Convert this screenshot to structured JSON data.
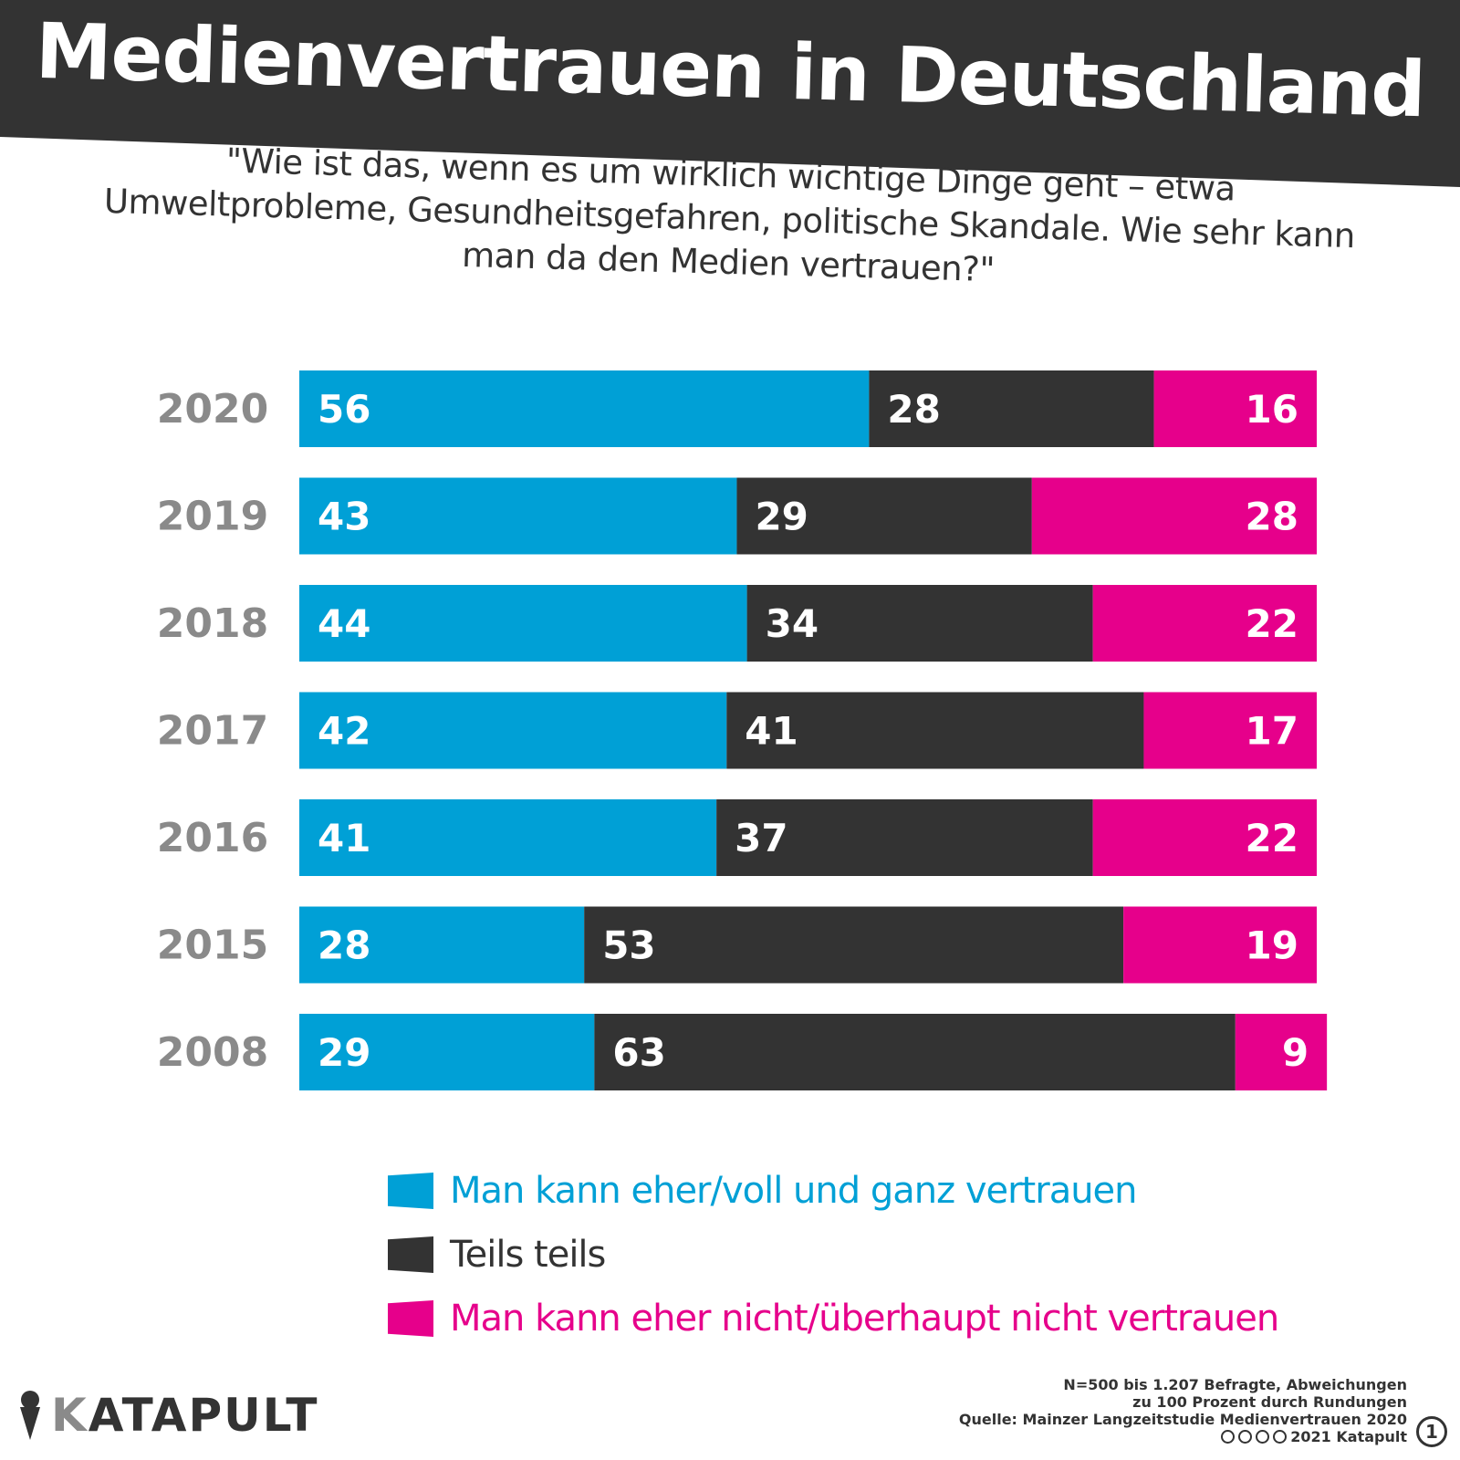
{
  "header": {
    "title": "Medienvertrauen in Deutschland",
    "question": "\"Wie ist das, wenn es um wirklich wichtige Dinge geht – etwa Umweltprobleme, Gesundheitsgefahren, politische Skandale. Wie sehr kann man da den Medien vertrauen?\""
  },
  "colors": {
    "trust": "#00a0d6",
    "partly": "#333333",
    "distrust": "#e6008b",
    "header": "#333333"
  },
  "chart_data": {
    "type": "bar",
    "orientation": "horizontal",
    "stacked": true,
    "categories": [
      "2020",
      "2019",
      "2018",
      "2017",
      "2016",
      "2015",
      "2008"
    ],
    "series": [
      {
        "name": "Man kann eher/voll und ganz vertrauen",
        "values": [
          56,
          43,
          44,
          42,
          41,
          28,
          29
        ]
      },
      {
        "name": "Teils teils",
        "values": [
          28,
          29,
          34,
          41,
          37,
          53,
          63
        ]
      },
      {
        "name": "Man kann eher nicht/überhaupt nicht vertrauen",
        "values": [
          16,
          28,
          22,
          17,
          22,
          19,
          9
        ]
      }
    ],
    "unit": "Prozent",
    "xlim": [
      0,
      100
    ]
  },
  "legend": {
    "items": [
      {
        "label": "Man kann eher/voll und ganz vertrauen",
        "color": "#00a0d6"
      },
      {
        "label": "Teils teils",
        "color": "#333333"
      },
      {
        "label": "Man kann eher nicht/überhaupt nicht vertrauen",
        "color": "#e6008b"
      }
    ]
  },
  "footer": {
    "line1": "N=500 bis 1.207 Befragte, Abweichungen",
    "line2": "zu 100 Prozent durch Rundungen",
    "line3": "Quelle: Mainzer Langzeitstudie Medienvertrauen 2020",
    "line4": "2021 Katapult",
    "page": "1"
  },
  "logo": {
    "k": "K",
    "rest": "ATAPULT"
  }
}
